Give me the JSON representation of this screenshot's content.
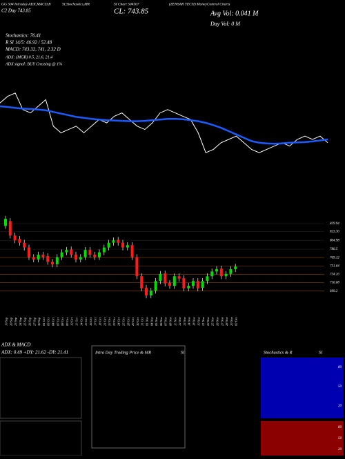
{
  "header": {
    "top1": "GG 504 Intraday ADX,MACD,R",
    "top2": "SI,Stochastics,MR",
    "top3": "SI Chart 504507",
    "top4": "(ZENSAR TECH) MoneyControl Charts",
    "day": "C2  Day  743.85",
    "close": "CL: 743.85",
    "avgvol": "Avg Vol: 0.041 M",
    "dayvol": "Day Vol: 0  M",
    "stoch": "Stochastics: 76.41",
    "rsi": "R        SI 14/5: 46.92 / 52.48",
    "macd": "MACD: 743.32, 741, 2.32  D",
    "adx": "ADX:                    (MGR) 0.5, 21.6, 21.4",
    "signal": "ADX  signal:                  BUY Crossing @ 1%"
  },
  "chart_data": [
    {
      "type": "line",
      "ylim": [
        650,
        900
      ],
      "series": [
        {
          "name": "Price",
          "color": "#ffffff",
          "values": [
            860,
            880,
            890,
            840,
            830,
            850,
            870,
            790,
            770,
            780,
            790,
            770,
            790,
            810,
            800,
            820,
            830,
            810,
            790,
            780,
            800,
            830,
            840,
            830,
            820,
            810,
            770,
            710,
            720,
            740,
            750,
            760,
            740,
            720,
            710,
            720,
            730,
            740,
            730,
            750,
            760,
            750,
            760,
            740
          ]
        },
        {
          "name": "MA",
          "color": "#1a5cff",
          "values": [
            850,
            848,
            845,
            843,
            842,
            840,
            838,
            833,
            828,
            823,
            818,
            815,
            812,
            810,
            808,
            807,
            806,
            805,
            805,
            806,
            808,
            810,
            812,
            812,
            811,
            808,
            805,
            800,
            793,
            785,
            775,
            765,
            755,
            745,
            740,
            738,
            737,
            738,
            740,
            741,
            742,
            744,
            747,
            750
          ]
        }
      ]
    },
    {
      "type": "candlestick",
      "ylim": [
        680,
        860
      ],
      "yticks": [
        839.94,
        823.36,
        804.98,
        786.5,
        769.12,
        751.64,
        734.16,
        716.68,
        699.2
      ],
      "categories": [
        "19 Sep",
        "20 Sep",
        "23 Sep",
        "24 Sep",
        "25 Sep",
        "26 Sep",
        "27 Sep",
        "30 Sep",
        "01 Oct",
        "03 Oct",
        "04 Oct",
        "07 Oct",
        "08 Oct",
        "09 Oct",
        "10 Oct",
        "11 Oct",
        "14 Oct",
        "15 Oct",
        "16 Oct",
        "17 Oct",
        "18 Oct",
        "21 Oct",
        "22 Oct",
        "23 Oct",
        "24 Oct",
        "25 Oct",
        "28 Oct",
        "29 Oct",
        "30 Oct",
        "31 Oct",
        "01 Nov",
        "04 Nov",
        "05 Nov",
        "06 Nov",
        "07 Nov",
        "08 Nov",
        "11 Nov",
        "12 Nov",
        "13 Nov",
        "14 Nov",
        "18 Nov",
        "19 Nov",
        "21 Nov",
        "22 Nov",
        "25 Nov",
        "26 Nov",
        "27 Nov",
        "28 Nov",
        "29 Nov",
        "02 Dec"
      ],
      "open": [
        835,
        845,
        815,
        808,
        800,
        790,
        770,
        765,
        775,
        772,
        760,
        755,
        770,
        780,
        786,
        775,
        765,
        770,
        785,
        775,
        770,
        780,
        790,
        800,
        806,
        800,
        790,
        795,
        770,
        730,
        706,
        690,
        700,
        720,
        736,
        716,
        710,
        730,
        726,
        705,
        710,
        720,
        706,
        720,
        730,
        740,
        746,
        730,
        735,
        745
      ],
      "high": [
        856,
        851,
        821,
        814,
        806,
        796,
        776,
        781,
        781,
        778,
        766,
        776,
        786,
        791,
        792,
        781,
        776,
        791,
        791,
        781,
        786,
        796,
        806,
        811,
        812,
        806,
        801,
        801,
        776,
        736,
        712,
        706,
        726,
        741,
        742,
        722,
        736,
        736,
        732,
        716,
        726,
        726,
        726,
        736,
        746,
        751,
        752,
        741,
        751,
        756
      ],
      "low": [
        829,
        809,
        799,
        794,
        784,
        764,
        759,
        759,
        764,
        754,
        749,
        749,
        764,
        774,
        769,
        759,
        759,
        764,
        769,
        764,
        764,
        774,
        784,
        794,
        794,
        784,
        784,
        764,
        724,
        699,
        684,
        684,
        694,
        714,
        709,
        704,
        704,
        719,
        699,
        699,
        704,
        699,
        700,
        714,
        724,
        734,
        724,
        724,
        729,
        739
      ],
      "close": [
        850,
        815,
        805,
        800,
        790,
        770,
        765,
        775,
        770,
        760,
        755,
        770,
        780,
        785,
        775,
        765,
        770,
        785,
        775,
        770,
        780,
        790,
        800,
        805,
        800,
        790,
        795,
        770,
        730,
        705,
        690,
        700,
        720,
        735,
        715,
        710,
        730,
        725,
        705,
        710,
        720,
        705,
        720,
        730,
        740,
        745,
        730,
        735,
        745,
        750
      ],
      "up_color": "#00dd00",
      "down_color": "#ff1a1a"
    }
  ],
  "panels": {
    "adx_title": "ADX  & MACD",
    "adx_values": "ADX: 0.49  +DY: 21.62  -DY: 21.41",
    "intra_title": "Intra  Day Trading Price  & MR",
    "intra_si": "SI",
    "stoch_title": "Stochastics & R",
    "stoch_si": "SI",
    "stoch_ticks": [
      "80",
      "50",
      "20"
    ],
    "rsi_ticks": [
      "80",
      "50",
      "20"
    ]
  }
}
